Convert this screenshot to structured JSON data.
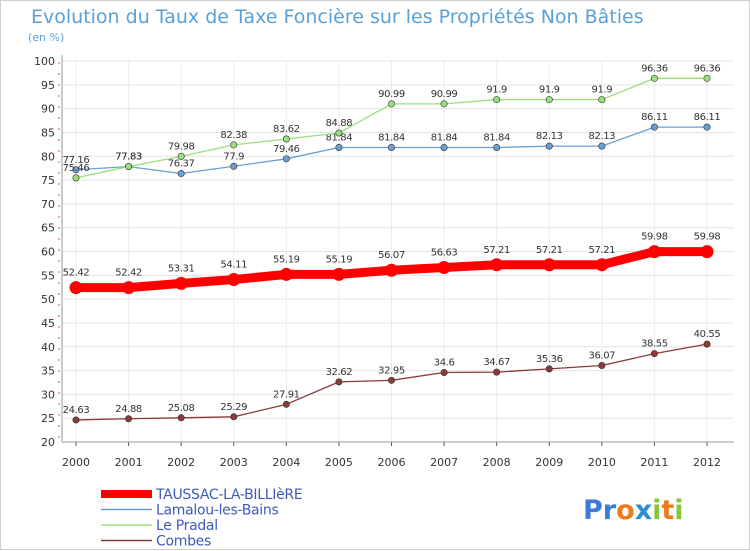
{
  "chart_data": {
    "type": "line",
    "title": "Evolution du Taux de Taxe Foncière sur les Propriétés Non Bâties",
    "subtitle": "(en %)",
    "xlabel": "",
    "ylabel": "(en %)",
    "ylim": [
      20,
      100
    ],
    "yticks": [
      20,
      25,
      30,
      35,
      40,
      45,
      50,
      55,
      60,
      65,
      70,
      75,
      80,
      85,
      90,
      95,
      100
    ],
    "x": [
      2000,
      2001,
      2002,
      2003,
      2004,
      2005,
      2006,
      2007,
      2008,
      2009,
      2010,
      2011,
      2012
    ],
    "grid": true,
    "legend_position": "bottom-left",
    "series": [
      {
        "name": "TAUSSAC-LA-BILLIèRE",
        "key": "taussac",
        "color": "#ff0000",
        "values": [
          52.42,
          52.42,
          53.31,
          54.11,
          55.19,
          55.19,
          56.07,
          56.63,
          57.21,
          57.21,
          57.21,
          59.98,
          59.98
        ],
        "labels": [
          "52.42",
          "52.42",
          "53.31",
          "54.11",
          "55.19",
          "55.19",
          "56.07",
          "56.63",
          "57.21",
          "57.21",
          "57.21",
          "59.98",
          "59.98"
        ]
      },
      {
        "name": "Lamalou-les-Bains",
        "key": "lamalou",
        "color": "#6a9fd4",
        "values": [
          77.16,
          77.83,
          76.37,
          77.9,
          79.46,
          81.84,
          81.84,
          81.84,
          81.84,
          82.13,
          82.13,
          86.11,
          86.11
        ],
        "labels": [
          "77.16",
          "77.83",
          "76.37",
          "77.9",
          "79.46",
          "81.84",
          "81.84",
          "81.84",
          "81.84",
          "82.13",
          "82.13",
          "86.11",
          "86.11"
        ]
      },
      {
        "name": "Le Pradal",
        "key": "pradal",
        "color": "#99e07a",
        "values": [
          75.46,
          77.83,
          79.98,
          82.38,
          83.62,
          84.88,
          90.99,
          90.99,
          91.9,
          91.9,
          91.9,
          96.36,
          96.36
        ],
        "labels": [
          "75.46",
          "77.83",
          "79.98",
          "82.38",
          "83.62",
          "84.88",
          "90.99",
          "90.99",
          "91.9",
          "91.9",
          "91.9",
          "96.36",
          "96.36"
        ]
      },
      {
        "name": "Combes",
        "key": "combes",
        "color": "#8b3a3a",
        "values": [
          24.63,
          24.88,
          25.08,
          25.29,
          27.91,
          32.62,
          32.95,
          34.6,
          34.67,
          35.36,
          36.07,
          38.55,
          40.55
        ],
        "labels": [
          "24.63",
          "24.88",
          "25.08",
          "25.29",
          "27.91",
          "32.62",
          "32.95",
          "34.6",
          "34.67",
          "35.36",
          "36.07",
          "38.55",
          "40.55"
        ]
      }
    ]
  },
  "logo": {
    "text": "Proxiti",
    "letters": [
      "P",
      "r",
      "o",
      "x",
      "i",
      "t",
      "i"
    ],
    "colors": [
      "#3a7bd5",
      "#3a7bd5",
      "#ee7a1e",
      "#2e8bd1",
      "#8ac43f",
      "#ee7a1e",
      "#8ac43f"
    ]
  }
}
